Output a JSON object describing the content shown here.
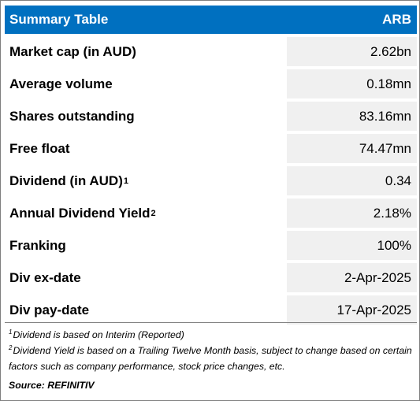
{
  "header": {
    "title": "Summary Table",
    "ticker": "ARB"
  },
  "rows": [
    {
      "label": "Market cap (in AUD)",
      "sup": "",
      "value": "2.62bn"
    },
    {
      "label": "Average volume",
      "sup": "",
      "value": "0.18mn"
    },
    {
      "label": "Shares outstanding",
      "sup": "",
      "value": "83.16mn"
    },
    {
      "label": "Free float",
      "sup": "",
      "value": "74.47mn"
    },
    {
      "label": "Dividend (in AUD)",
      "sup": "1",
      "value": "0.34"
    },
    {
      "label": "Annual Dividend Yield",
      "sup": "2",
      "value": "2.18%"
    },
    {
      "label": "Franking",
      "sup": "",
      "value": "100%"
    },
    {
      "label": "Div ex-date",
      "sup": "",
      "value": "2-Apr-2025"
    },
    {
      "label": "Div pay-date",
      "sup": "",
      "value": "17-Apr-2025"
    }
  ],
  "notes": [
    {
      "sup": "1",
      "text": "Dividend is based on Interim (Reported)"
    },
    {
      "sup": "2",
      "text": "Dividend Yield is based on a Trailing Twelve Month basis, subject to change based on certain factors such as company performance, stock price changes, etc."
    }
  ],
  "source": "Source: REFINITIV"
}
